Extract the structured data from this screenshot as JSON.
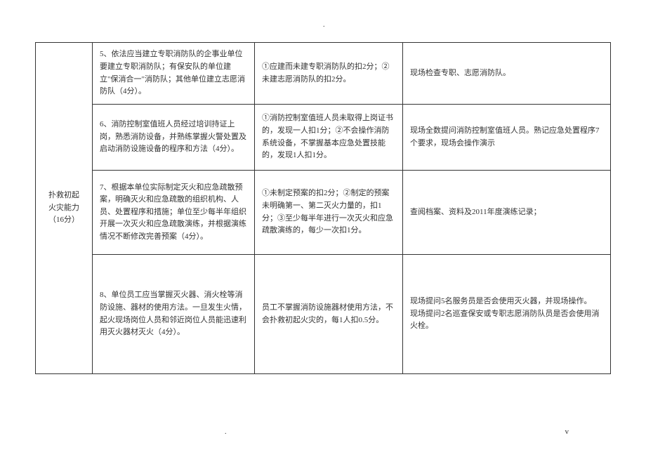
{
  "marks": {
    "dot": ".",
    "v": "v"
  },
  "category": {
    "title_line1": "扑救初起",
    "title_line2": "火灾能力",
    "title_line3": "（16分）"
  },
  "rows": [
    {
      "item": "5、依法应当建立专职消防队的企事业单位要建立专职消防队；有保安队的单位建立\"保消合一\"消防队；其他单位建立志愿消防队（4分）。",
      "criteria": "①应建而未建专职消防队的扣2分；②未建志愿消防队的扣2分。",
      "method": "现场检查专职、志愿消防队。"
    },
    {
      "item": "6、消防控制室值班人员经过培训持证上岗，熟悉消防设备，并熟练掌握火警处置及启动消防设施设备的程序和方法（4分）。",
      "criteria": "①消防控制室值班人员未取得上岗证书的，发现一人扣1分；②不会操作消防系统设备，不掌握基本应急处置技能的，发现1人扣1分。",
      "method": "现场全数提问消防控制室值班人员。熟记应急处置程序7个要求，现场会操作演示"
    },
    {
      "item": "7、根据本单位实际制定灭火和应急疏散预案，明确灭火和应急疏散的组织机构、人员、处置程序和措施；单位至少每半年组织开展一次灭火和应急疏散演练，并根据演练情况不断修改完善预案（4分）。",
      "criteria": "①未制定预案的扣2分；②制定的预案未明确第一、第二灭火力量的，扣1分；③至少每半年进行一次灭火和应急疏散演练的，每少一次扣1分。",
      "method": "查阅档案、资料及2011年度演练记录；"
    },
    {
      "item": "8、单位员工应当掌握灭火器、消火栓等消防设施、器材的使用方法。一旦发生火情，起火现场岗位人员和邻近岗位人员能迅速利用灭火器材灭火（4分）。",
      "criteria": "员工不掌握消防设施器材使用方法，不会扑救初起火灾的，每1人扣0.5分。",
      "method": "现场提问5名服务员是否会使用灭火器，并现场操作。\n现场提问2名巡查保安或专职志愿消防队员是否会使用消火栓。"
    }
  ]
}
